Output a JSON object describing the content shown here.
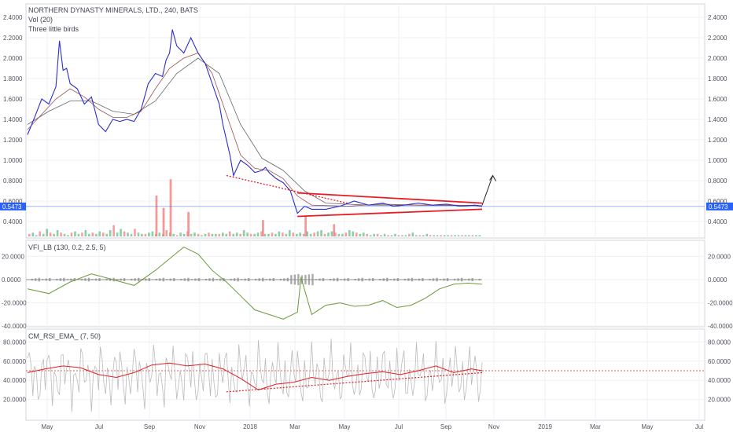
{
  "header": {
    "symbol_line": "NORTHERN DYNASTY MINERALS, LTD., 240, BATS",
    "vol_line": "Vol (20)",
    "strategy_line": "Three little birds"
  },
  "colors": {
    "price": "#2d2dcc",
    "ma_fast": "#a05050",
    "ma_slow": "#666666",
    "trend": "#e51c23",
    "vol_up": "#66bb8a",
    "vol_down": "#f08080",
    "vfi": "#6a9a3a",
    "rsi": "#bbbbbb",
    "rsi_ema": "#e51c23",
    "last_price": "#2962ff"
  },
  "x_axis": {
    "labels": [
      "May",
      "Jul",
      "Sep",
      "Nov",
      "2018",
      "Mar",
      "May",
      "Jul",
      "Sep",
      "Nov",
      "2019",
      "Mar",
      "May",
      "Jul"
    ]
  },
  "chart_data": [
    {
      "type": "line",
      "panel": "price",
      "title": "NORTHERN DYNASTY MINERALS, LTD., 240, BATS",
      "ylim": [
        0.3,
        2.5
      ],
      "y_ticks": [
        "2.4000",
        "2.2000",
        "2.0000",
        "1.8000",
        "1.6000",
        "1.4000",
        "1.2000",
        "1.0000",
        "0.8000",
        "0.6000",
        "0.4000"
      ],
      "last_price_label": "0.5473",
      "last_price": 0.5473,
      "series": [
        {
          "name": "",
          "x": [
            0,
            2,
            4,
            6,
            8,
            9,
            10,
            11,
            12,
            14,
            16,
            18,
            20,
            22,
            24,
            26,
            28,
            30,
            32,
            34,
            36,
            38,
            39,
            40,
            40.8,
            42,
            44,
            46,
            48,
            50,
            52,
            54,
            55,
            56,
            57,
            58,
            60,
            62,
            64,
            66,
            67,
            68,
            70,
            72,
            74,
            76,
            78,
            80,
            84,
            88,
            92,
            96,
            100,
            103,
            106,
            110,
            114,
            118,
            122,
            126,
            128
          ],
          "values": [
            1.25,
            1.42,
            1.6,
            1.55,
            1.72,
            2.17,
            1.88,
            1.9,
            1.75,
            1.7,
            1.55,
            1.62,
            1.35,
            1.28,
            1.4,
            1.38,
            1.4,
            1.38,
            1.5,
            1.75,
            1.85,
            1.82,
            1.98,
            2.05,
            2.28,
            2.12,
            2.05,
            2.2,
            2.05,
            1.95,
            1.75,
            1.55,
            1.35,
            1.2,
            1.05,
            0.85,
            1.0,
            0.95,
            0.88,
            0.9,
            0.93,
            0.88,
            0.82,
            0.78,
            0.7,
            0.48,
            0.55,
            0.52,
            0.52,
            0.55,
            0.6,
            0.56,
            0.58,
            0.55,
            0.56,
            0.58,
            0.56,
            0.57,
            0.55,
            0.56,
            0.5473
          ]
        },
        {
          "name": "",
          "x": [
            0,
            4,
            8,
            12,
            16,
            20,
            24,
            28,
            32,
            36,
            40,
            44,
            48,
            52,
            56,
            60,
            64,
            68,
            72,
            76,
            80,
            90,
            100,
            110,
            120,
            128
          ],
          "values": [
            1.3,
            1.45,
            1.6,
            1.7,
            1.62,
            1.5,
            1.42,
            1.42,
            1.48,
            1.7,
            1.9,
            2.0,
            2.05,
            1.85,
            1.45,
            1.05,
            0.92,
            0.9,
            0.82,
            0.65,
            0.56,
            0.55,
            0.57,
            0.56,
            0.56,
            0.555
          ]
        },
        {
          "name": "",
          "x": [
            0,
            6,
            12,
            18,
            24,
            30,
            36,
            42,
            48,
            54,
            60,
            66,
            72,
            78,
            84,
            96,
            108,
            128
          ],
          "values": [
            1.35,
            1.48,
            1.58,
            1.58,
            1.48,
            1.45,
            1.58,
            1.85,
            2.0,
            1.85,
            1.35,
            1.02,
            0.9,
            0.7,
            0.58,
            0.56,
            0.56,
            0.555
          ]
        }
      ],
      "annotations": [
        {
          "kind": "dotted_trendline",
          "x": [
            56,
            90
          ],
          "values": [
            0.85,
            0.58
          ]
        },
        {
          "kind": "upper_triangle_line",
          "x": [
            76,
            128
          ],
          "values": [
            0.68,
            0.58
          ]
        },
        {
          "kind": "lower_triangle_line",
          "x": [
            76,
            128
          ],
          "values": [
            0.45,
            0.52
          ]
        },
        {
          "kind": "breakout_arrow",
          "x": [
            128,
            131
          ],
          "values": [
            0.56,
            0.85
          ]
        }
      ]
    },
    {
      "type": "bar",
      "panel": "volume",
      "title": "Vol (20)",
      "note": "relative volume values",
      "values": [
        2,
        3,
        1,
        4,
        2,
        6,
        3,
        2,
        5,
        3,
        2,
        1,
        3,
        4,
        2,
        3,
        5,
        2,
        3,
        2,
        4,
        3,
        2,
        5,
        9,
        3,
        6,
        4,
        3,
        2,
        6,
        3,
        2,
        2,
        3,
        4,
        2,
        3,
        2,
        5,
        3,
        2,
        1,
        3,
        2,
        4,
        2,
        3,
        2,
        1,
        2,
        3,
        2,
        2,
        2,
        3,
        2,
        4,
        2,
        3,
        2,
        5,
        3,
        2,
        2,
        3,
        4,
        2,
        2,
        3,
        2,
        4,
        3,
        2,
        5,
        3,
        2,
        3,
        2,
        4,
        2,
        3,
        4,
        5,
        2,
        3,
        4,
        3,
        2,
        2,
        3,
        5,
        4,
        3,
        2,
        3,
        2,
        1,
        2,
        2,
        1,
        2,
        1,
        1,
        2,
        1,
        1,
        1,
        2,
        3,
        1,
        1,
        1,
        2,
        1,
        1,
        1,
        1,
        1,
        1,
        1,
        1,
        1,
        1,
        1,
        1,
        1,
        1,
        1
      ],
      "highlight_bars": [
        {
          "x": 40,
          "value": 28
        },
        {
          "x": 38,
          "value": 14
        },
        {
          "x": 36,
          "value": 20
        },
        {
          "x": 45,
          "value": 12
        },
        {
          "x": 78,
          "value": 10
        },
        {
          "x": 66,
          "value": 8
        },
        {
          "x": 86,
          "value": 6
        }
      ]
    },
    {
      "type": "line",
      "panel": "vfi",
      "title": "VFI_LB (130, 0.2, 2.5, 5)",
      "ylim": [
        -40,
        30
      ],
      "y_ticks": [
        "20.0000",
        "0.0000",
        "-20.0000",
        "-40.0000"
      ],
      "series": [
        {
          "name": "",
          "x": [
            0,
            6,
            12,
            18,
            24,
            30,
            36,
            40,
            44,
            48,
            52,
            56,
            60,
            64,
            68,
            72,
            76,
            77,
            80,
            84,
            88,
            92,
            96,
            100,
            104,
            108,
            112,
            116,
            120,
            124,
            128
          ],
          "values": [
            -8,
            -12,
            -2,
            5,
            0,
            -5,
            8,
            18,
            28,
            22,
            8,
            -2,
            -14,
            -26,
            -30,
            -34,
            -28,
            2,
            -30,
            -22,
            -20,
            -23,
            -22,
            -18,
            -24,
            -22,
            -16,
            -8,
            -4,
            -3,
            -4
          ]
        }
      ]
    },
    {
      "type": "line",
      "panel": "rsi",
      "title": "CM_RSI_EMA_ (7, 50)",
      "ylim": [
        0,
        90
      ],
      "y_ticks": [
        "80.0000",
        "60.0000",
        "40.0000",
        "20.0000"
      ],
      "reference_line": 50,
      "series": [
        {
          "name": "",
          "x": [
            0,
            5,
            10,
            15,
            20,
            25,
            30,
            35,
            40,
            45,
            50,
            55,
            60,
            65,
            70,
            75,
            80,
            85,
            90,
            95,
            100,
            105,
            110,
            115,
            120,
            125,
            128
          ],
          "values": [
            48,
            52,
            55,
            53,
            46,
            43,
            48,
            56,
            58,
            55,
            57,
            52,
            42,
            30,
            36,
            38,
            43,
            40,
            44,
            47,
            49,
            46,
            50,
            55,
            48,
            52,
            50
          ]
        }
      ],
      "annotations": [
        {
          "kind": "dotted_trendline",
          "x": [
            56,
            128
          ],
          "values": [
            28,
            48
          ]
        }
      ]
    }
  ]
}
